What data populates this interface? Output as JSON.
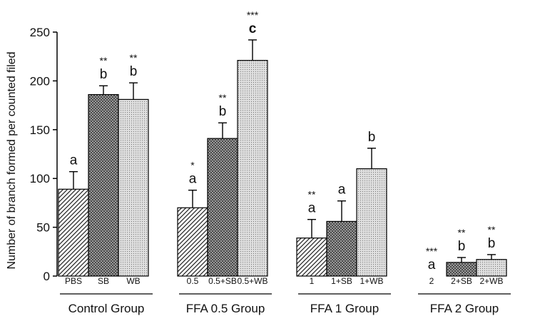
{
  "chart_data": {
    "type": "bar",
    "title": "",
    "ylabel": "Number of branch formed per counted filed",
    "xlabel": "",
    "ylim": [
      0,
      250
    ],
    "yticks": [
      "0",
      "50",
      "100",
      "150",
      "200",
      "250"
    ],
    "grid": false,
    "groups": [
      {
        "name": "Control Group",
        "bars": [
          {
            "label": "PBS",
            "value": 89,
            "error": 18,
            "pattern": "diagonal",
            "stars": "",
            "letter": "a"
          },
          {
            "label": "SB",
            "value": 186,
            "error": 9,
            "pattern": "crosshatch",
            "stars": "**",
            "letter": "b"
          },
          {
            "label": "WB",
            "value": 181,
            "error": 17,
            "pattern": "dots",
            "stars": "**",
            "letter": "b"
          }
        ]
      },
      {
        "name": "FFA 0.5 Group",
        "bars": [
          {
            "label": "0.5",
            "value": 70,
            "error": 18,
            "pattern": "diagonal",
            "stars": "*",
            "letter": "a"
          },
          {
            "label": "0.5+SB",
            "value": 141,
            "error": 16,
            "pattern": "crosshatch",
            "stars": "**",
            "letter": "b"
          },
          {
            "label": "0.5+WB",
            "value": 221,
            "error": 21,
            "pattern": "dots",
            "stars": "***",
            "letter": "c"
          }
        ]
      },
      {
        "name": "FFA 1 Group",
        "bars": [
          {
            "label": "1",
            "value": 39,
            "error": 19,
            "pattern": "diagonal",
            "stars": "**",
            "letter": "a"
          },
          {
            "label": "1+SB",
            "value": 56,
            "error": 21,
            "pattern": "crosshatch",
            "stars": "",
            "letter": "a"
          },
          {
            "label": "1+WB",
            "value": 110,
            "error": 21,
            "pattern": "dots",
            "stars": "",
            "letter": "b"
          }
        ]
      },
      {
        "name": "FFA 2 Group",
        "bars": [
          {
            "label": "2",
            "value": 0,
            "error": 0,
            "pattern": "diagonal",
            "stars": "***",
            "letter": "a"
          },
          {
            "label": "2+SB",
            "value": 14,
            "error": 5,
            "pattern": "crosshatch",
            "stars": "**",
            "letter": "b"
          },
          {
            "label": "2+WB",
            "value": 17,
            "error": 5,
            "pattern": "dots",
            "stars": "**",
            "letter": "b"
          }
        ]
      }
    ]
  }
}
